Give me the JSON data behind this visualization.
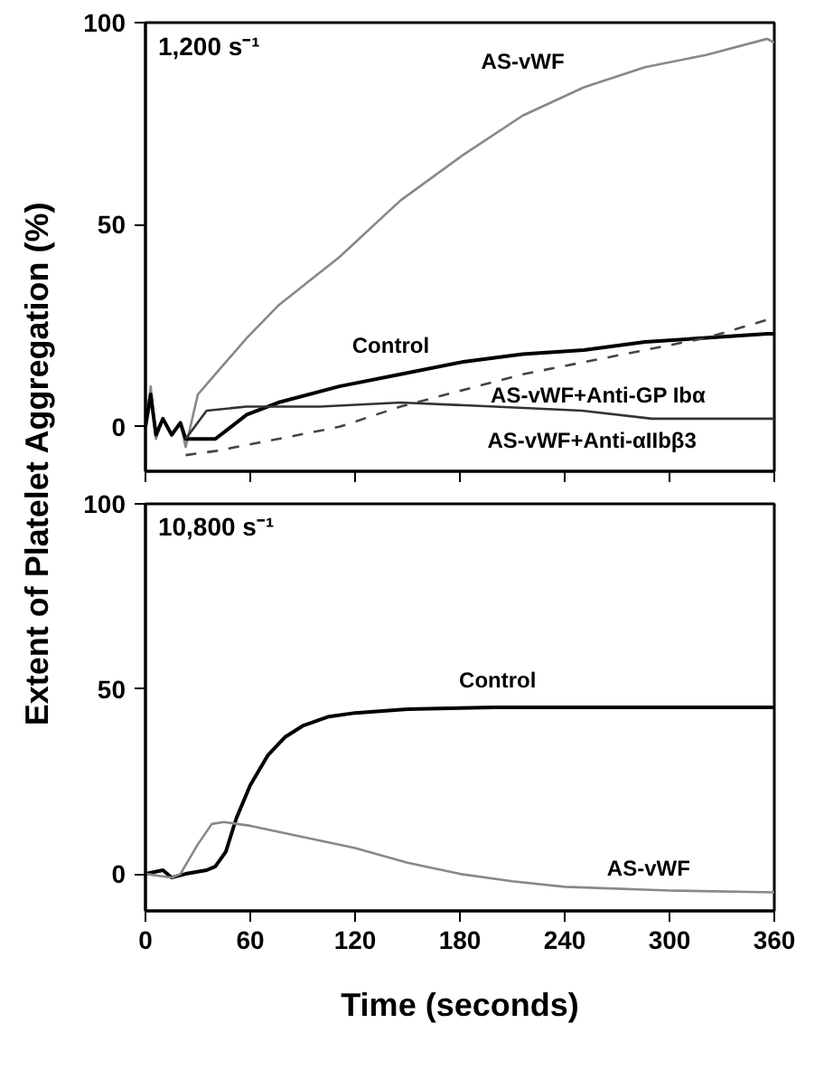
{
  "chart_data": [
    {
      "type": "line",
      "ylabel": "Extent of Platelet Aggregation (%)",
      "xlim": [
        0,
        360
      ],
      "xticks": [
        0,
        60,
        120,
        180,
        240,
        300,
        360
      ],
      "ylim": [
        -11,
        100
      ],
      "yticks": [
        0,
        50,
        100
      ],
      "tick_labels": "y",
      "grid": false,
      "annotations": [
        "1,200 s⁻¹"
      ],
      "series": [
        {
          "name": "AS-vWF",
          "color": "#888888",
          "line_style": "solid",
          "x": [
            0,
            3,
            6,
            10,
            15,
            20,
            23,
            30,
            58,
            76,
            111,
            146,
            181,
            216,
            251,
            286,
            321,
            356,
            360
          ],
          "values": [
            0,
            10,
            -3,
            2,
            -2,
            1,
            -5,
            8,
            22,
            30,
            42,
            56,
            67,
            77,
            84,
            89,
            92,
            96,
            95
          ]
        },
        {
          "name": "Control",
          "color": "#000000",
          "line_style": "solid",
          "x": [
            0,
            3,
            6,
            10,
            15,
            20,
            23,
            40,
            58,
            76,
            111,
            146,
            181,
            216,
            251,
            286,
            321,
            356,
            360
          ],
          "values": [
            0,
            8,
            -2,
            2,
            -2,
            1,
            -3,
            -3,
            3,
            6,
            10,
            13,
            16,
            18,
            19,
            21,
            22,
            23,
            23
          ]
        },
        {
          "name": "AS-vWF+Anti-GP Ibα",
          "color": "#444444",
          "line_style": "dashed",
          "x": [
            23,
            40,
            76,
            111,
            146,
            181,
            216,
            251,
            286,
            321,
            360
          ],
          "values": [
            -7,
            -6,
            -3,
            0,
            5,
            9,
            13,
            16,
            19,
            22,
            27
          ]
        },
        {
          "name": "AS-vWF+Anti-αIIbβ3",
          "color": "#333333",
          "line_style": "solid",
          "x": [
            23,
            35,
            58,
            100,
            146,
            200,
            250,
            290,
            360
          ],
          "values": [
            -3,
            4,
            5,
            5,
            6,
            5,
            4,
            2,
            2
          ]
        }
      ]
    },
    {
      "type": "line",
      "xlabel": "Time (seconds)",
      "xlim": [
        0,
        360
      ],
      "xticks": [
        0,
        60,
        120,
        180,
        240,
        300,
        360
      ],
      "ylim": [
        -10,
        100
      ],
      "yticks": [
        0,
        50,
        100
      ],
      "grid": false,
      "annotations": [
        "10,800 s⁻¹"
      ],
      "series": [
        {
          "name": "Control",
          "color": "#000000",
          "line_style": "solid",
          "x": [
            0,
            10,
            15,
            23,
            35,
            40,
            46,
            52,
            60,
            70,
            80,
            90,
            105,
            120,
            150,
            200,
            360
          ],
          "values": [
            0,
            1,
            -1,
            0,
            1,
            2,
            6,
            15,
            24,
            32,
            37,
            40,
            42.5,
            43.5,
            44.5,
            45,
            45
          ]
        },
        {
          "name": "AS-vWF",
          "color": "#888888",
          "line_style": "solid",
          "x": [
            0,
            15,
            20,
            30,
            38,
            45,
            60,
            90,
            120,
            150,
            180,
            210,
            240,
            300,
            360
          ],
          "values": [
            0,
            -1,
            0,
            8,
            13.5,
            14,
            13,
            10,
            7,
            3,
            0,
            -2,
            -3.5,
            -4.5,
            -5
          ]
        }
      ]
    }
  ]
}
